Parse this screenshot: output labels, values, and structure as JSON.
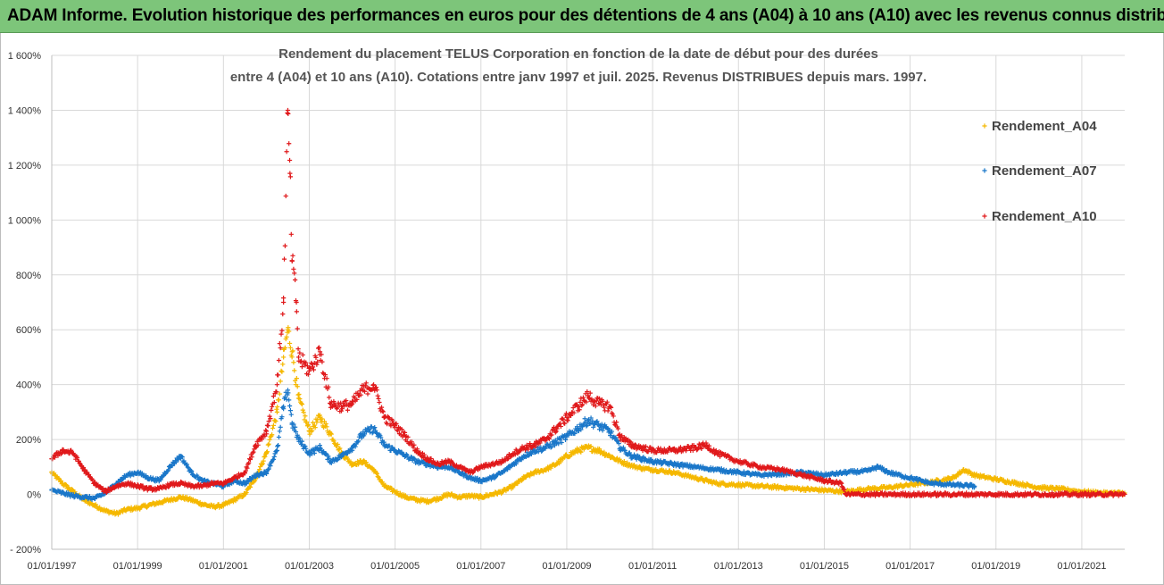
{
  "banner": {
    "text": "ADAM Informe. Evolution historique des performances en euros pour des détentions de 4 ans (A04) à 10 ans (A10) avec les revenus connus distribués"
  },
  "chart_data": {
    "type": "scatter",
    "title_line1": "Rendement du placement TELUS Corporation en fonction de la date de début pour des durées",
    "title_line2": "entre 4 (A04) et 10 ans (A10). Cotations entre janv 1997 et juil. 2025. Revenus DISTRIBUES depuis mars. 1997.",
    "ylim": [
      -200,
      1600
    ],
    "yticks": [
      -200,
      0,
      200,
      400,
      600,
      800,
      1000,
      1200,
      1400,
      1600
    ],
    "ytick_labels": [
      "- 200%",
      "0%",
      "200%",
      "400%",
      "600%",
      "800%",
      "1 000%",
      "1 200%",
      "1 400%",
      "1 600%"
    ],
    "xlim": [
      1997.0,
      2022.0
    ],
    "xticks": [
      1997,
      1999,
      2001,
      2003,
      2005,
      2007,
      2009,
      2011,
      2013,
      2015,
      2017,
      2019,
      2021
    ],
    "xtick_labels": [
      "01/01/1997",
      "01/01/1999",
      "01/01/2001",
      "01/01/2003",
      "01/01/2005",
      "01/01/2007",
      "01/01/2009",
      "01/01/2011",
      "01/01/2013",
      "01/01/2015",
      "01/01/2017",
      "01/01/2019",
      "01/01/2021"
    ],
    "grid": true,
    "legend_position": "right",
    "series": [
      {
        "name": "Rendement_A04",
        "color": "#f5b800",
        "points": [
          [
            1997.0,
            80
          ],
          [
            1997.25,
            40
          ],
          [
            1997.5,
            10
          ],
          [
            1997.75,
            -20
          ],
          [
            1998.0,
            -40
          ],
          [
            1998.25,
            -60
          ],
          [
            1998.5,
            -70
          ],
          [
            1998.75,
            -55
          ],
          [
            1999.0,
            -50
          ],
          [
            1999.25,
            -40
          ],
          [
            1999.5,
            -30
          ],
          [
            1999.75,
            -20
          ],
          [
            2000.0,
            -10
          ],
          [
            2000.25,
            -20
          ],
          [
            2000.5,
            -35
          ],
          [
            2000.75,
            -45
          ],
          [
            2001.0,
            -40
          ],
          [
            2001.25,
            -20
          ],
          [
            2001.5,
            0
          ],
          [
            2001.75,
            60
          ],
          [
            2002.0,
            150
          ],
          [
            2002.25,
            300
          ],
          [
            2002.4,
            500
          ],
          [
            2002.5,
            600
          ],
          [
            2002.6,
            520
          ],
          [
            2002.75,
            350
          ],
          [
            2003.0,
            230
          ],
          [
            2003.25,
            280
          ],
          [
            2003.5,
            220
          ],
          [
            2003.75,
            150
          ],
          [
            2004.0,
            110
          ],
          [
            2004.25,
            120
          ],
          [
            2004.5,
            90
          ],
          [
            2004.75,
            30
          ],
          [
            2005.0,
            10
          ],
          [
            2005.25,
            -10
          ],
          [
            2005.5,
            -20
          ],
          [
            2005.75,
            -25
          ],
          [
            2006.0,
            -15
          ],
          [
            2006.25,
            0
          ],
          [
            2006.5,
            -10
          ],
          [
            2006.75,
            -5
          ],
          [
            2007.0,
            -10
          ],
          [
            2007.25,
            0
          ],
          [
            2007.5,
            10
          ],
          [
            2007.75,
            30
          ],
          [
            2008.0,
            60
          ],
          [
            2008.25,
            80
          ],
          [
            2008.5,
            90
          ],
          [
            2008.75,
            110
          ],
          [
            2009.0,
            140
          ],
          [
            2009.25,
            160
          ],
          [
            2009.5,
            170
          ],
          [
            2009.75,
            160
          ],
          [
            2010.0,
            140
          ],
          [
            2010.25,
            120
          ],
          [
            2010.5,
            105
          ],
          [
            2010.75,
            95
          ],
          [
            2011.0,
            90
          ],
          [
            2011.5,
            80
          ],
          [
            2012.0,
            60
          ],
          [
            2012.5,
            40
          ],
          [
            2013.0,
            35
          ],
          [
            2013.5,
            30
          ],
          [
            2014.0,
            25
          ],
          [
            2014.5,
            20
          ],
          [
            2015.0,
            15
          ],
          [
            2015.5,
            10
          ],
          [
            2016.0,
            20
          ],
          [
            2016.5,
            25
          ],
          [
            2017.0,
            35
          ],
          [
            2017.5,
            45
          ],
          [
            2018.0,
            60
          ],
          [
            2018.25,
            90
          ],
          [
            2018.5,
            70
          ],
          [
            2019.0,
            55
          ],
          [
            2019.5,
            40
          ],
          [
            2020.0,
            25
          ],
          [
            2020.5,
            20
          ],
          [
            2021.0,
            10
          ],
          [
            2021.5,
            5
          ],
          [
            2022.0,
            5
          ]
        ]
      },
      {
        "name": "Rendement_A07",
        "color": "#1a77c9",
        "points": [
          [
            1997.0,
            15
          ],
          [
            1997.25,
            5
          ],
          [
            1997.5,
            -5
          ],
          [
            1997.75,
            -10
          ],
          [
            1998.0,
            -15
          ],
          [
            1998.25,
            5
          ],
          [
            1998.5,
            40
          ],
          [
            1998.75,
            70
          ],
          [
            1999.0,
            80
          ],
          [
            1999.25,
            60
          ],
          [
            1999.5,
            50
          ],
          [
            1999.75,
            100
          ],
          [
            2000.0,
            140
          ],
          [
            2000.25,
            80
          ],
          [
            2000.5,
            50
          ],
          [
            2000.75,
            40
          ],
          [
            2001.0,
            30
          ],
          [
            2001.25,
            50
          ],
          [
            2001.5,
            40
          ],
          [
            2001.75,
            70
          ],
          [
            2002.0,
            80
          ],
          [
            2002.25,
            160
          ],
          [
            2002.4,
            320
          ],
          [
            2002.5,
            380
          ],
          [
            2002.6,
            260
          ],
          [
            2002.75,
            200
          ],
          [
            2003.0,
            150
          ],
          [
            2003.25,
            170
          ],
          [
            2003.5,
            120
          ],
          [
            2003.75,
            140
          ],
          [
            2004.0,
            170
          ],
          [
            2004.25,
            220
          ],
          [
            2004.5,
            240
          ],
          [
            2004.75,
            180
          ],
          [
            2005.0,
            160
          ],
          [
            2005.25,
            140
          ],
          [
            2005.5,
            120
          ],
          [
            2005.75,
            110
          ],
          [
            2006.0,
            100
          ],
          [
            2006.25,
            100
          ],
          [
            2006.5,
            80
          ],
          [
            2006.75,
            60
          ],
          [
            2007.0,
            50
          ],
          [
            2007.25,
            60
          ],
          [
            2007.5,
            80
          ],
          [
            2007.75,
            110
          ],
          [
            2008.0,
            140
          ],
          [
            2008.25,
            160
          ],
          [
            2008.5,
            170
          ],
          [
            2008.75,
            190
          ],
          [
            2009.0,
            210
          ],
          [
            2009.25,
            240
          ],
          [
            2009.5,
            270
          ],
          [
            2009.75,
            250
          ],
          [
            2010.0,
            230
          ],
          [
            2010.25,
            170
          ],
          [
            2010.5,
            140
          ],
          [
            2010.75,
            130
          ],
          [
            2011.0,
            120
          ],
          [
            2011.5,
            110
          ],
          [
            2012.0,
            100
          ],
          [
            2012.5,
            90
          ],
          [
            2013.0,
            80
          ],
          [
            2013.5,
            70
          ],
          [
            2014.0,
            75
          ],
          [
            2014.5,
            80
          ],
          [
            2015.0,
            70
          ],
          [
            2015.5,
            80
          ],
          [
            2016.0,
            85
          ],
          [
            2016.25,
            100
          ],
          [
            2016.5,
            80
          ],
          [
            2017.0,
            60
          ],
          [
            2017.5,
            40
          ],
          [
            2018.0,
            35
          ],
          [
            2018.5,
            30
          ]
        ]
      },
      {
        "name": "Rendement_A10",
        "color": "#e0191b",
        "points": [
          [
            1997.0,
            130
          ],
          [
            1997.25,
            160
          ],
          [
            1997.5,
            150
          ],
          [
            1997.75,
            90
          ],
          [
            1998.0,
            40
          ],
          [
            1998.25,
            10
          ],
          [
            1998.5,
            30
          ],
          [
            1998.75,
            40
          ],
          [
            1999.0,
            30
          ],
          [
            1999.25,
            20
          ],
          [
            1999.5,
            20
          ],
          [
            1999.75,
            35
          ],
          [
            2000.0,
            40
          ],
          [
            2000.25,
            30
          ],
          [
            2000.5,
            30
          ],
          [
            2000.75,
            40
          ],
          [
            2001.0,
            40
          ],
          [
            2001.25,
            60
          ],
          [
            2001.5,
            80
          ],
          [
            2001.75,
            180
          ],
          [
            2002.0,
            230
          ],
          [
            2002.25,
            400
          ],
          [
            2002.4,
            700
          ],
          [
            2002.5,
            1400
          ],
          [
            2002.55,
            1170
          ],
          [
            2002.6,
            850
          ],
          [
            2002.7,
            700
          ],
          [
            2002.75,
            500
          ],
          [
            2003.0,
            450
          ],
          [
            2003.25,
            520
          ],
          [
            2003.5,
            330
          ],
          [
            2003.75,
            320
          ],
          [
            2004.0,
            330
          ],
          [
            2004.25,
            380
          ],
          [
            2004.5,
            400
          ],
          [
            2004.75,
            280
          ],
          [
            2005.0,
            250
          ],
          [
            2005.25,
            210
          ],
          [
            2005.5,
            160
          ],
          [
            2005.75,
            130
          ],
          [
            2006.0,
            110
          ],
          [
            2006.25,
            120
          ],
          [
            2006.5,
            100
          ],
          [
            2006.75,
            80
          ],
          [
            2007.0,
            100
          ],
          [
            2007.25,
            110
          ],
          [
            2007.5,
            120
          ],
          [
            2007.75,
            150
          ],
          [
            2008.0,
            170
          ],
          [
            2008.25,
            180
          ],
          [
            2008.5,
            200
          ],
          [
            2008.75,
            240
          ],
          [
            2009.0,
            280
          ],
          [
            2009.25,
            320
          ],
          [
            2009.5,
            360
          ],
          [
            2009.75,
            330
          ],
          [
            2010.0,
            320
          ],
          [
            2010.25,
            210
          ],
          [
            2010.5,
            180
          ],
          [
            2010.75,
            170
          ],
          [
            2011.0,
            160
          ],
          [
            2011.5,
            160
          ],
          [
            2012.0,
            170
          ],
          [
            2012.25,
            180
          ],
          [
            2012.5,
            150
          ],
          [
            2013.0,
            120
          ],
          [
            2013.5,
            100
          ],
          [
            2014.0,
            90
          ],
          [
            2014.5,
            70
          ],
          [
            2015.0,
            50
          ],
          [
            2015.4,
            40
          ],
          [
            2015.5,
            0
          ],
          [
            2016.0,
            0
          ],
          [
            2017.0,
            0
          ],
          [
            2018.0,
            0
          ],
          [
            2019.0,
            0
          ],
          [
            2020.0,
            0
          ],
          [
            2021.0,
            0
          ],
          [
            2022.0,
            0
          ]
        ]
      }
    ]
  }
}
